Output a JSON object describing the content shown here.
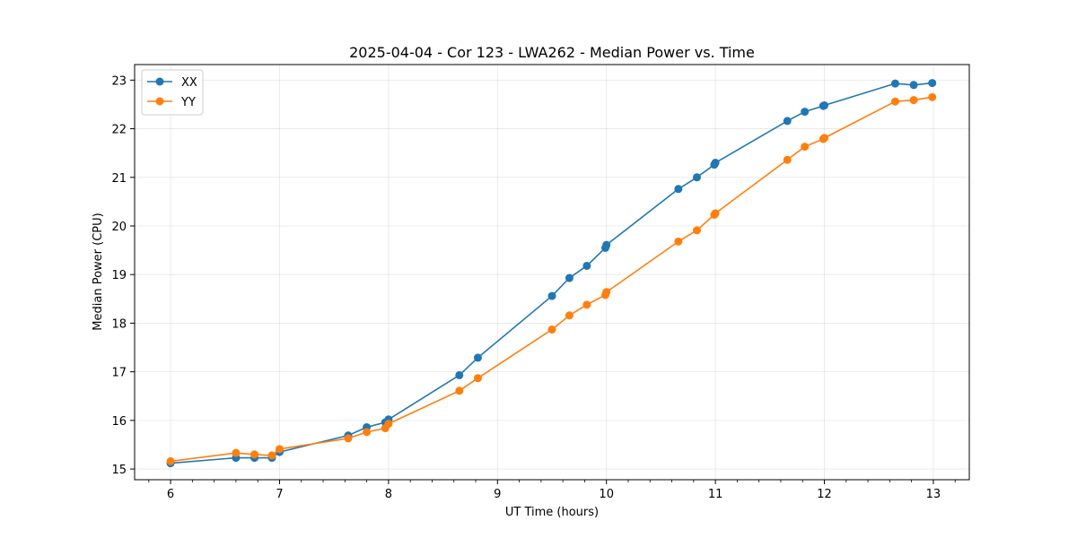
{
  "chart_data": {
    "type": "line",
    "title": "2025-04-04 - Cor 123 - LWA262 - Median Power vs. Time",
    "xlabel": "UT Time (hours)",
    "ylabel": "Median Power (CPU)",
    "xlim": [
      5.67,
      13.33
    ],
    "ylim": [
      14.78,
      23.32
    ],
    "xticks": [
      6,
      7,
      8,
      9,
      10,
      11,
      12,
      13
    ],
    "yticks": [
      15,
      16,
      17,
      18,
      19,
      20,
      21,
      22,
      23
    ],
    "x_minor_step": 0.2,
    "grid": true,
    "legend_position": "top-left",
    "series": [
      {
        "name": "XX",
        "color": "#1f77b4",
        "x": [
          6.0,
          6.6,
          6.77,
          6.93,
          7.0,
          7.63,
          7.8,
          7.97,
          8.0,
          8.65,
          8.82,
          9.5,
          9.66,
          9.82,
          9.99,
          10.0,
          10.66,
          10.83,
          10.99,
          11.0,
          11.66,
          11.82,
          11.99,
          12.0,
          12.65,
          12.82,
          12.99
        ],
        "y": [
          15.12,
          15.23,
          15.23,
          15.23,
          15.35,
          15.69,
          15.86,
          15.96,
          16.02,
          16.93,
          17.29,
          18.56,
          18.93,
          19.18,
          19.55,
          19.61,
          20.76,
          21.0,
          21.26,
          21.3,
          22.16,
          22.35,
          22.47,
          22.48,
          22.93,
          22.9,
          22.94
        ]
      },
      {
        "name": "YY",
        "color": "#ff7f0e",
        "x": [
          6.0,
          6.6,
          6.77,
          6.93,
          7.0,
          7.63,
          7.8,
          7.97,
          8.0,
          8.65,
          8.82,
          9.5,
          9.66,
          9.82,
          9.99,
          10.0,
          10.66,
          10.83,
          10.99,
          11.0,
          11.66,
          11.82,
          11.99,
          12.0,
          12.65,
          12.82,
          12.99
        ],
        "y": [
          15.16,
          15.33,
          15.3,
          15.28,
          15.41,
          15.63,
          15.76,
          15.84,
          15.93,
          16.61,
          16.87,
          17.87,
          18.16,
          18.38,
          18.58,
          18.64,
          19.68,
          19.91,
          20.23,
          20.26,
          21.36,
          21.63,
          21.79,
          21.81,
          22.56,
          22.59,
          22.65
        ]
      }
    ]
  }
}
